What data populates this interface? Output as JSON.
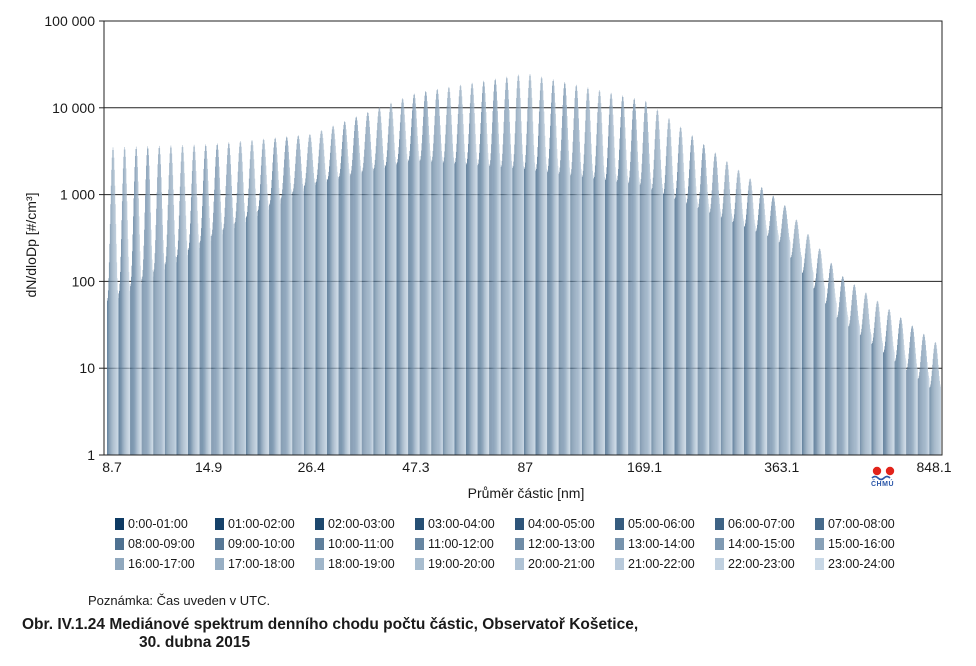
{
  "chart_data": {
    "type": "bar",
    "title": "",
    "xlabel": "Průměr částic [nm]",
    "ylabel": "dN/dloDp [#/cm³]",
    "y_scale": "log",
    "ylim": [
      1,
      100000
    ],
    "y_ticks": [
      "1",
      "10",
      "100",
      "1 000",
      "10 000",
      "100 000"
    ],
    "x_scale": "log",
    "xlim": [
      8.7,
      848.1
    ],
    "x_ticks": [
      "8.7",
      "14.9",
      "26.4",
      "47.3",
      "87",
      "169.1",
      "363.1",
      "848.1"
    ],
    "grid": true,
    "legend_position": "bottom",
    "colors": {
      "darkest": "#0d3a63",
      "lightest": "#c9d8e6",
      "grid": "#222222"
    },
    "series": [
      {
        "name": "0:00-01:00"
      },
      {
        "name": "01:00-02:00"
      },
      {
        "name": "02:00-03:00"
      },
      {
        "name": "03:00-04:00"
      },
      {
        "name": "04:00-05:00"
      },
      {
        "name": "05:00-06:00"
      },
      {
        "name": "06:00-07:00"
      },
      {
        "name": "07:00-08:00"
      },
      {
        "name": "08:00-09:00"
      },
      {
        "name": "09:00-10:00"
      },
      {
        "name": "10:00-11:00"
      },
      {
        "name": "11:00-12:00"
      },
      {
        "name": "12:00-13:00"
      },
      {
        "name": "13:00-14:00"
      },
      {
        "name": "14:00-15:00"
      },
      {
        "name": "15:00-16:00"
      },
      {
        "name": "16:00-17:00"
      },
      {
        "name": "17:00-18:00"
      },
      {
        "name": "18:00-19:00"
      },
      {
        "name": "19:00-20:00"
      },
      {
        "name": "20:00-21:00"
      },
      {
        "name": "21:00-22:00"
      },
      {
        "name": "22:00-23:00"
      },
      {
        "name": "23:00-24:00"
      }
    ],
    "size_bins": {
      "count": 72,
      "from_nm": 8.7,
      "to_nm": 848.1
    },
    "envelope_max": [
      [
        8.7,
        3500
      ],
      [
        14.9,
        3800
      ],
      [
        26.4,
        5000
      ],
      [
        47.3,
        15000
      ],
      [
        87,
        25000
      ],
      [
        169.1,
        12000
      ],
      [
        363.1,
        800
      ],
      [
        500,
        120
      ],
      [
        848.1,
        20
      ]
    ],
    "envelope_min": [
      [
        8.7,
        60
      ],
      [
        14.9,
        300
      ],
      [
        26.4,
        1300
      ],
      [
        47.3,
        2500
      ],
      [
        87,
        2000
      ],
      [
        169.1,
        1300
      ],
      [
        363.1,
        300
      ],
      [
        500,
        40
      ],
      [
        848.1,
        6
      ]
    ]
  },
  "logo": {
    "text": "ČHMÚ",
    "colors": [
      "#e2231a",
      "#2a56a8"
    ]
  },
  "note": "Poznámka: Čas uveden v UTC.",
  "caption": {
    "line1": "Obr. IV.1.24  Mediánové spektrum denního chodu počtu částic, Observatoř Košetice,",
    "line2": "30. dubna 2015"
  }
}
